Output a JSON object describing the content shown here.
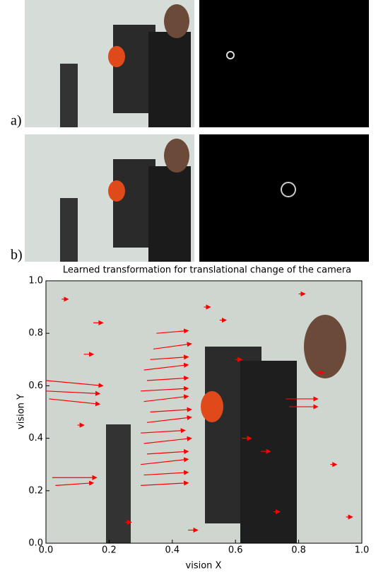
{
  "panels": [
    {
      "label": "a)"
    },
    {
      "label": "b)"
    }
  ],
  "chart_data": {
    "type": "quiver",
    "title": "Learned transformation for translational change of the camera",
    "xlabel": "vision X",
    "ylabel": "vision Y",
    "xlim": [
      0,
      1
    ],
    "ylim": [
      0,
      1
    ],
    "xticks": [
      {
        "value": 0,
        "label": "0.0"
      },
      0.2,
      0.4,
      0.6,
      0.8,
      {
        "value": 1,
        "label": "1.0"
      }
    ],
    "yticks": [
      {
        "value": 0,
        "label": "0.0"
      },
      0.2,
      0.4,
      0.6,
      0.8,
      {
        "value": 1,
        "label": "1.0"
      }
    ],
    "color": "#ff0000",
    "x": [
      0.3,
      0.31,
      0.3,
      0.32,
      0.31,
      0.3,
      0.32,
      0.33,
      0.31,
      0.3,
      0.32,
      0.31,
      0.33,
      0.34,
      0.35,
      0.0,
      0.0,
      0.01,
      0.02,
      0.03,
      0.76,
      0.77,
      0.15,
      0.05,
      0.12,
      0.55,
      0.6,
      0.68,
      0.72,
      0.85,
      0.9,
      0.95,
      0.45,
      0.5,
      0.62,
      0.8,
      0.25,
      0.1
    ],
    "y": [
      0.22,
      0.26,
      0.3,
      0.34,
      0.38,
      0.42,
      0.46,
      0.5,
      0.54,
      0.58,
      0.62,
      0.66,
      0.7,
      0.74,
      0.8,
      0.62,
      0.58,
      0.55,
      0.25,
      0.22,
      0.55,
      0.52,
      0.84,
      0.93,
      0.72,
      0.85,
      0.7,
      0.35,
      0.12,
      0.65,
      0.3,
      0.1,
      0.05,
      0.9,
      0.4,
      0.95,
      0.08,
      0.45
    ],
    "u": [
      0.15,
      0.14,
      0.15,
      0.13,
      0.15,
      0.14,
      0.14,
      0.13,
      0.14,
      0.15,
      0.13,
      0.14,
      0.12,
      0.12,
      0.1,
      0.18,
      0.17,
      0.16,
      0.14,
      0.12,
      0.1,
      0.09,
      0.03,
      0.02,
      0.03,
      0.02,
      0.02,
      0.03,
      0.02,
      0.03,
      0.02,
      0.02,
      0.03,
      0.02,
      0.03,
      0.02,
      0.02,
      0.02
    ],
    "v": [
      0.01,
      0.01,
      0.02,
      0.01,
      0.02,
      0.01,
      0.02,
      0.01,
      0.02,
      0.01,
      0.01,
      0.02,
      0.01,
      0.02,
      0.01,
      -0.02,
      -0.01,
      -0.02,
      0.0,
      0.01,
      0.0,
      0.0,
      0.0,
      0.0,
      0.0,
      0.0,
      0.0,
      0.0,
      0.0,
      0.0,
      0.0,
      0.0,
      0.0,
      0.0,
      0.0,
      0.0,
      0.0,
      0.0
    ]
  }
}
